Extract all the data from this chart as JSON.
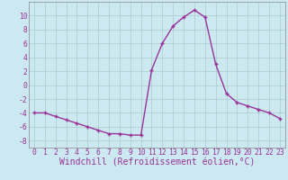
{
  "x": [
    0,
    1,
    2,
    3,
    4,
    5,
    6,
    7,
    8,
    9,
    10,
    11,
    12,
    13,
    14,
    15,
    16,
    17,
    18,
    19,
    20,
    21,
    22,
    23
  ],
  "y": [
    -4,
    -4,
    -4.5,
    -5,
    -5.5,
    -6,
    -6.5,
    -7,
    -7,
    -7.2,
    -7.2,
    2.2,
    6,
    8.5,
    9.8,
    10.8,
    9.8,
    3,
    -1.2,
    -2.5,
    -3,
    -3.5,
    -4,
    -4.8
  ],
  "line_color": "#993399",
  "marker": "+",
  "marker_size": 3.5,
  "marker_linewidth": 1.0,
  "bg_color": "#cce8f0",
  "grid_color": "#aacccc",
  "xlabel": "Windchill (Refroidissement éolien,°C)",
  "xlim": [
    -0.5,
    23.5
  ],
  "ylim": [
    -9,
    12
  ],
  "yticks": [
    -8,
    -6,
    -4,
    -2,
    0,
    2,
    4,
    6,
    8,
    10
  ],
  "xticks": [
    0,
    1,
    2,
    3,
    4,
    5,
    6,
    7,
    8,
    9,
    10,
    11,
    12,
    13,
    14,
    15,
    16,
    17,
    18,
    19,
    20,
    21,
    22,
    23
  ],
  "tick_label_fontsize": 5.8,
  "xlabel_fontsize": 7.0,
  "line_width": 1.0
}
